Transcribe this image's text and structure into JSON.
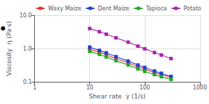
{
  "chart_data": {
    "type": "line",
    "xlabel": "Shear rate  γ̇ (1/s)",
    "ylabel": "Viscosity  η (Pa·s)",
    "annotations": [
      "●"
    ],
    "x": [
      10,
      15,
      20,
      30,
      50,
      75,
      100,
      150,
      200,
      300
    ],
    "series": [
      {
        "name": "Waxy Maize",
        "color": "#e03030",
        "values": [
          0.95,
          0.78,
          0.65,
          0.5,
          0.37,
          0.28,
          0.24,
          0.19,
          0.165,
          0.135
        ]
      },
      {
        "name": "Dent Maize",
        "color": "#2040cc",
        "values": [
          1.1,
          0.88,
          0.74,
          0.57,
          0.42,
          0.32,
          0.27,
          0.21,
          0.18,
          0.145
        ]
      },
      {
        "name": "Tapioca",
        "color": "#22aa22",
        "values": [
          0.82,
          0.67,
          0.56,
          0.43,
          0.32,
          0.245,
          0.205,
          0.165,
          0.142,
          0.118
        ]
      },
      {
        "name": "Potato",
        "color": "#aa22aa",
        "values": [
          4.0,
          3.2,
          2.7,
          2.1,
          1.55,
          1.18,
          0.98,
          0.76,
          0.64,
          0.5
        ]
      }
    ],
    "marker": "square",
    "line_style": "solid",
    "xlim": [
      1,
      1000
    ],
    "ylim": [
      0.1,
      10.0
    ],
    "xticks": [
      1,
      10,
      100,
      1000
    ],
    "yticks": [
      0.1,
      {
        "value": 1,
        "label": "1.0"
      },
      {
        "value": 10,
        "label": "10.0"
      }
    ],
    "log": true,
    "grid": true,
    "legend": "upper right"
  }
}
